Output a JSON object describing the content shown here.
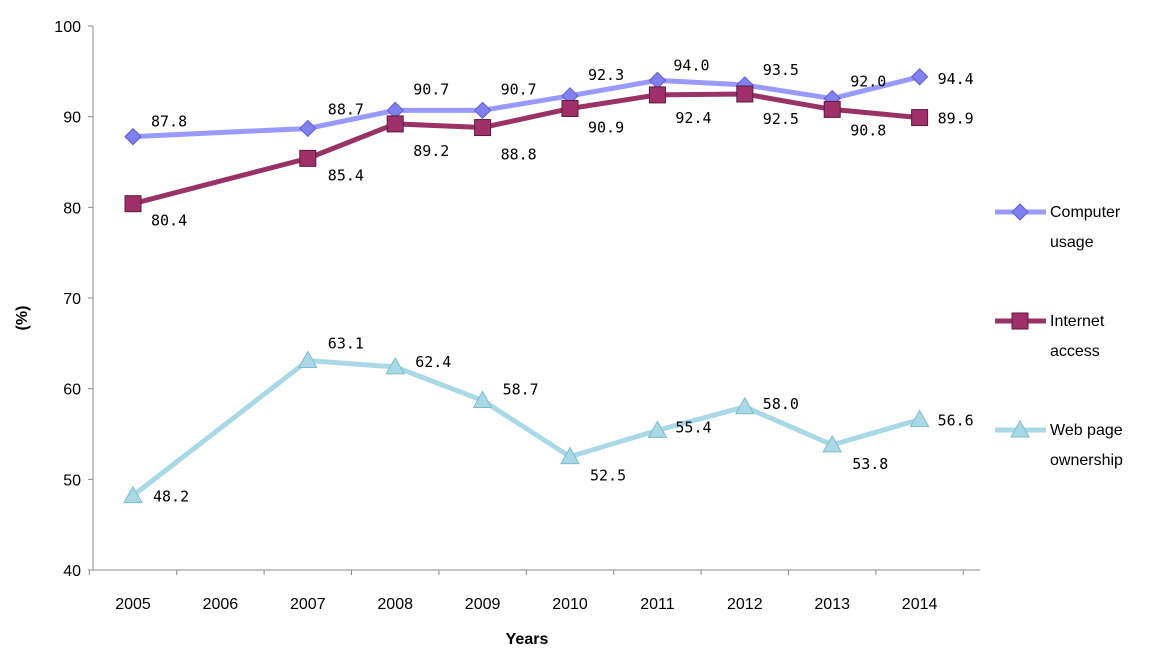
{
  "chart_data": {
    "type": "line",
    "title": "",
    "xlabel": "Years",
    "ylabel": "(%)",
    "ylim": [
      40,
      100
    ],
    "yticks": [
      "40",
      "50",
      "60",
      "70",
      "80",
      "90",
      "100"
    ],
    "categories": [
      "2005",
      "2006",
      "2007",
      "2008",
      "2009",
      "2010",
      "2011",
      "2012",
      "2013",
      "2014"
    ],
    "grid": false,
    "legend_position": "right",
    "series": [
      {
        "name_lines": [
          "Computer",
          "usage"
        ],
        "color": "#9999ff",
        "marker": "diamond",
        "marker_color": "#8080f0",
        "values": [
          87.8,
          null,
          88.7,
          90.7,
          90.7,
          92.3,
          94.0,
          93.5,
          92.0,
          94.4
        ],
        "labels": [
          "87.8",
          null,
          "88.7",
          "90.7",
          "90.7",
          "92.3",
          "94.0",
          "93.5",
          "92.0",
          "94.4"
        ]
      },
      {
        "name_lines": [
          "Internet",
          "access"
        ],
        "color": "#993366",
        "marker": "square",
        "marker_color": "#a0306a",
        "values": [
          80.4,
          null,
          85.4,
          89.2,
          88.8,
          90.9,
          92.4,
          92.5,
          90.8,
          89.9
        ],
        "labels": [
          "80.4",
          null,
          "85.4",
          "89.2",
          "88.8",
          "90.9",
          "92.4",
          "92.5",
          "90.8",
          "89.9"
        ]
      },
      {
        "name_lines": [
          "Web page",
          "ownership"
        ],
        "color": "#a9d8e6",
        "marker": "triangle",
        "marker_color": "#a9d8e6",
        "values": [
          48.2,
          null,
          63.1,
          62.4,
          58.7,
          52.5,
          55.4,
          58.0,
          53.8,
          56.6
        ],
        "labels": [
          "48.2",
          null,
          "63.1",
          "62.4",
          "58.7",
          "52.5",
          "55.4",
          "58.0",
          "53.8",
          "56.6"
        ]
      }
    ]
  }
}
